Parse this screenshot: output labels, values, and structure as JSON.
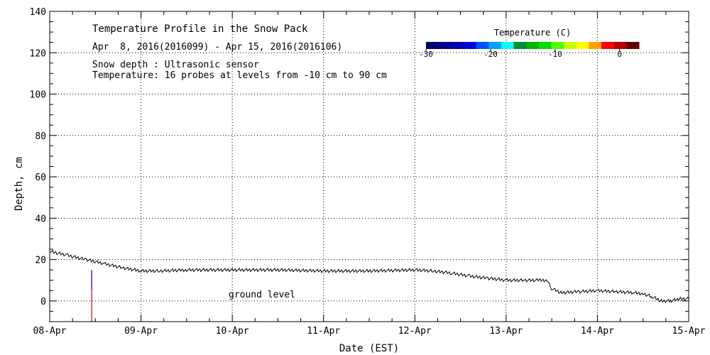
{
  "chart_data": {
    "type": "line",
    "title": "Temperature Profile in the Snow Pack",
    "subtitle": "Apr  8, 2016(2016099) - Apr 15, 2016(2016106)",
    "notes": [
      "Snow depth : Ultrasonic sensor",
      "Temperature: 16 probes at levels from -10 cm to 90 cm"
    ],
    "annotation": "ground level",
    "xlabel": "Date (EST)",
    "ylabel": "Depth, cm",
    "x_ticks": [
      "08-Apr",
      "09-Apr",
      "10-Apr",
      "11-Apr",
      "12-Apr",
      "13-Apr",
      "14-Apr",
      "15-Apr"
    ],
    "y_ticks": [
      "140",
      "120",
      "100",
      "80",
      "60",
      "40",
      "20",
      "0"
    ],
    "xlim": [
      0,
      7
    ],
    "ylim": [
      -10,
      140
    ],
    "grid": true,
    "series": [
      {
        "x": [
          0,
          0.2,
          0.4,
          0.6,
          0.8,
          1.0,
          1.2,
          1.5,
          2.0,
          2.5,
          3.0,
          3.5,
          4.0,
          4.2,
          4.4,
          4.6,
          4.8,
          5.0,
          5.2,
          5.35,
          5.45,
          5.5,
          5.6,
          5.8,
          6.0,
          6.2,
          6.4,
          6.5,
          6.6,
          6.7,
          6.8,
          6.9,
          7.0
        ],
        "y": [
          24,
          22,
          20,
          18,
          16,
          14.5,
          14.5,
          15,
          15,
          15,
          14.5,
          14.5,
          15,
          14.5,
          13.5,
          12,
          11,
          10,
          10,
          10,
          10,
          6,
          4,
          4.5,
          5,
          4.5,
          4,
          3.5,
          2,
          0,
          0,
          1,
          1
        ],
        "color": "#000000"
      }
    ],
    "probe_marks": [
      {
        "x": 0.46,
        "y_top": 15,
        "y_bottom": 5,
        "color": "#0000aa"
      },
      {
        "x": 0.46,
        "y_top": 5,
        "y_bottom": -10,
        "color": "#cc0000"
      }
    ],
    "colorbar": {
      "title": "Temperature (C)",
      "range": [
        -30,
        3
      ],
      "ticks": [
        "-30",
        "-20",
        "-10",
        "0"
      ],
      "tick_values": [
        -30,
        -20,
        -10,
        0
      ],
      "colors": [
        "#000066",
        "#00008c",
        "#0000b4",
        "#0000dc",
        "#0050ff",
        "#00a0ff",
        "#00ffff",
        "#008c3c",
        "#00b400",
        "#00dc00",
        "#50ff00",
        "#c8ff00",
        "#ffff00",
        "#ffa000",
        "#ff0000",
        "#b40000",
        "#640000"
      ]
    }
  }
}
